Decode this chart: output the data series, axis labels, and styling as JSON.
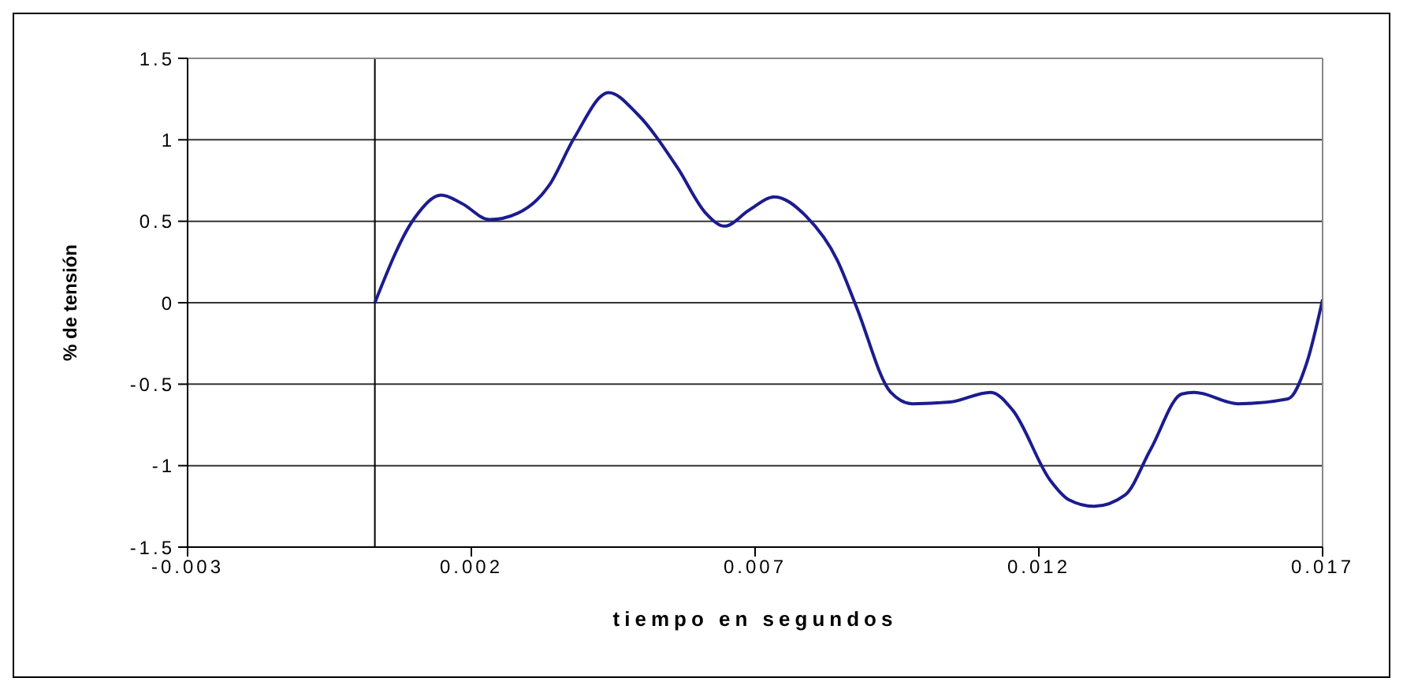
{
  "chart_data": {
    "type": "line",
    "xlabel": "tiempo en segundos",
    "ylabel": "% de tensión",
    "series": [
      {
        "color": "#1c1c8f",
        "x": [
          0.0003,
          0.001,
          0.00147,
          0.00183,
          0.00232,
          0.00282,
          0.00337,
          0.00381,
          0.00442,
          0.00492,
          0.00563,
          0.00613,
          0.00646,
          0.0069,
          0.00734,
          0.0079,
          0.00845,
          0.00878,
          0.00939,
          0.00977,
          0.01043,
          0.01115,
          0.01154,
          0.0122,
          0.01253,
          0.01297,
          0.01352,
          0.01397,
          0.01452,
          0.01474,
          0.01551,
          0.01639,
          0.01672,
          0.017
        ],
        "values": [
          0,
          0.52,
          0.66,
          0.61,
          0.51,
          0.55,
          0.72,
          1.01,
          1.29,
          1.16,
          0.83,
          0.55,
          0.47,
          0.57,
          0.65,
          0.53,
          0.26,
          -0.02,
          -0.55,
          -0.62,
          -0.61,
          -0.55,
          -0.66,
          -1.09,
          -1.21,
          -1.25,
          -1.18,
          -0.9,
          -0.56,
          -0.55,
          -0.62,
          -0.59,
          -0.37,
          0.02
        ]
      }
    ],
    "xlim": [
      -0.003,
      0.017
    ],
    "xticks": [
      -0.003,
      0.002,
      0.007,
      0.012,
      0.017
    ],
    "ylim": [
      -1.5,
      1.5
    ],
    "yticks": [
      -1.5,
      -1,
      -0.5,
      0,
      0.5,
      1,
      1.5
    ],
    "ref_lines": [
      {
        "axis": "x",
        "value": 0.0003,
        "color": "#000000"
      }
    ],
    "grid": "y",
    "marker": "none",
    "line_style": "solid",
    "legend": false
  }
}
